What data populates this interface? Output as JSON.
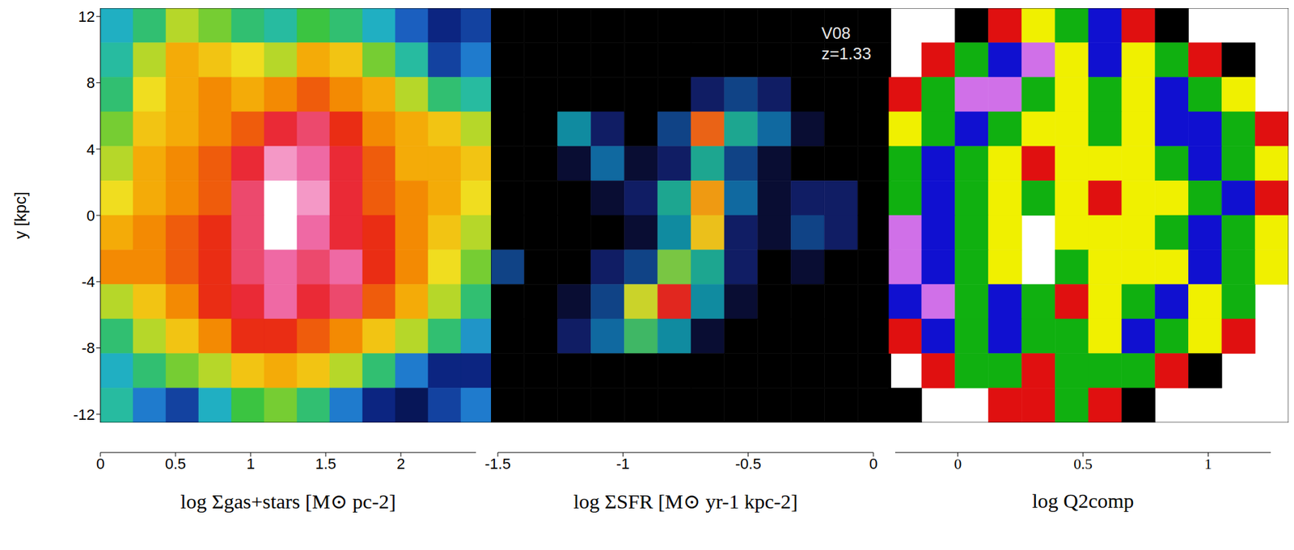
{
  "chart_data": [
    {
      "type": "heatmap",
      "xlim": [
        -12.5,
        12.5
      ],
      "ylim": [
        -12.5,
        12.5
      ],
      "xticks": [
        -12,
        -8,
        -4,
        0,
        4,
        8,
        12
      ],
      "yticks": [
        -12,
        -8,
        -4,
        0,
        4,
        8,
        12
      ],
      "tick_labels": "y",
      "y_label": "y [kpc]",
      "cells": [
        [
          0.8,
          1.0,
          1.3,
          1.2,
          1.0,
          0.9,
          1.1,
          1.0,
          0.8,
          0.5,
          0.3,
          0.4
        ],
        [
          0.9,
          1.3,
          1.6,
          1.5,
          1.4,
          1.3,
          1.6,
          1.5,
          1.2,
          0.9,
          0.4,
          0.6
        ],
        [
          1.0,
          1.4,
          1.6,
          1.7,
          1.6,
          1.7,
          1.8,
          1.7,
          1.6,
          1.3,
          1.0,
          0.9
        ],
        [
          1.2,
          1.5,
          1.6,
          1.7,
          1.8,
          2.0,
          2.1,
          1.9,
          1.7,
          1.6,
          1.5,
          1.3
        ],
        [
          1.3,
          1.6,
          1.7,
          1.8,
          2.0,
          2.3,
          2.2,
          2.0,
          1.8,
          1.6,
          1.6,
          1.5
        ],
        [
          1.4,
          1.6,
          1.7,
          1.8,
          2.1,
          2.5,
          2.3,
          2.0,
          1.8,
          1.7,
          1.6,
          1.4
        ],
        [
          1.6,
          1.7,
          1.8,
          1.9,
          2.1,
          2.5,
          2.2,
          2.0,
          1.9,
          1.7,
          1.5,
          1.3
        ],
        [
          1.7,
          1.7,
          1.8,
          1.9,
          2.1,
          2.2,
          2.1,
          2.2,
          1.9,
          1.7,
          1.4,
          1.2
        ],
        [
          1.3,
          1.5,
          1.7,
          1.9,
          2.0,
          2.2,
          2.0,
          2.1,
          1.8,
          1.6,
          1.3,
          1.0
        ],
        [
          1.0,
          1.3,
          1.5,
          1.7,
          1.9,
          1.9,
          1.8,
          1.7,
          1.5,
          1.3,
          1.0,
          0.7
        ],
        [
          0.8,
          1.0,
          1.2,
          1.3,
          1.5,
          1.6,
          1.5,
          1.3,
          1.0,
          0.6,
          0.3,
          0.3
        ],
        [
          0.9,
          0.6,
          0.4,
          0.8,
          1.1,
          1.2,
          1.0,
          0.6,
          0.3,
          0.2,
          0.4,
          0.6
        ]
      ],
      "colorbar": {
        "type": "continuous",
        "label": "log Σgas+stars [M⊙ pc-2]",
        "range": [
          0,
          2.5
        ],
        "ticks": [
          0,
          0.5,
          1,
          1.5,
          2
        ],
        "colors": [
          "#000000",
          "#0a1f7a",
          "#1f6fd0",
          "#20b8c0",
          "#3cc43c",
          "#f0e020",
          "#f59a00",
          "#e81818",
          "#f070b0",
          "#ffffff"
        ]
      }
    },
    {
      "type": "heatmap",
      "xlim": [
        -12.5,
        12.5
      ],
      "ylim": [
        -12.5,
        12.5
      ],
      "xticks": [
        -12,
        -8,
        -4,
        0,
        4,
        8,
        12
      ],
      "yticks": [
        -12,
        -8,
        -4,
        0,
        4,
        8,
        12
      ],
      "tick_labels": false,
      "annotations": [
        "V08",
        "z=1.33"
      ],
      "cells": [
        [
          -2,
          -2,
          -2,
          -2,
          -2,
          -2,
          -2,
          -2,
          -2,
          -2,
          -2,
          -2
        ],
        [
          -2,
          -2,
          -2,
          -2,
          -2,
          -2,
          -2,
          -2,
          -2,
          -2,
          -2,
          -2
        ],
        [
          -2,
          -2,
          -2,
          -2,
          -2,
          -2,
          -1.3,
          -1.2,
          -1.3,
          -2,
          -2,
          -2
        ],
        [
          -2,
          -2,
          -1.0,
          -1.3,
          -2,
          -1.2,
          -0.3,
          -0.9,
          -1.1,
          -1.4,
          -2,
          -2
        ],
        [
          -2,
          -2,
          -1.4,
          -1.1,
          -1.4,
          -1.3,
          -0.9,
          -1.2,
          -1.4,
          -2,
          -2,
          -2
        ],
        [
          -2,
          -2,
          -2,
          -1.4,
          -1.3,
          -0.9,
          -0.4,
          -1.1,
          -1.4,
          -1.3,
          -1.3,
          -2
        ],
        [
          -2,
          -2,
          -2,
          -2,
          -1.4,
          -1.0,
          -0.5,
          -1.3,
          -1.4,
          -1.2,
          -1.3,
          -2
        ],
        [
          -1.2,
          -2,
          -2,
          -1.3,
          -1.2,
          -0.7,
          -0.9,
          -1.3,
          -2,
          -1.4,
          -2,
          -2
        ],
        [
          -2,
          -2,
          -1.4,
          -1.2,
          -0.6,
          -0.2,
          -1.0,
          -1.4,
          -2,
          -2,
          -2,
          -2
        ],
        [
          -2,
          -2,
          -1.3,
          -1.1,
          -0.8,
          -1.0,
          -1.4,
          -2,
          -2,
          -2,
          -2,
          -2
        ],
        [
          -2,
          -2,
          -2,
          -2,
          -2,
          -2,
          -2,
          -2,
          -2,
          -2,
          -2,
          -2
        ],
        [
          -2,
          -2,
          -2,
          -2,
          -2,
          -2,
          -2,
          -2,
          -2,
          -2,
          -2,
          -2
        ]
      ],
      "colorbar": {
        "type": "continuous",
        "label": "log ΣSFR [M⊙ yr-1 kpc-2]",
        "range": [
          -1.5,
          0
        ],
        "ticks": [
          -1.5,
          -1,
          -0.5,
          0
        ],
        "colors": [
          "#000000",
          "#101860",
          "#1060a0",
          "#10a0a0",
          "#50c050",
          "#e8d820",
          "#f09010",
          "#e02020",
          "#ffffff"
        ]
      }
    },
    {
      "type": "heatmap",
      "xlim": [
        -12.5,
        12.5
      ],
      "ylim": [
        -12.5,
        12.5
      ],
      "xticks": [
        -12,
        -8,
        -4,
        0,
        4,
        8,
        12
      ],
      "yticks": [
        -12,
        -8,
        -4,
        0,
        4,
        8,
        12
      ],
      "tick_labels": false,
      "cells": [
        [
          null,
          null,
          1.4,
          0.9,
          0.6,
          0.35,
          0.1,
          0.9,
          1.4,
          null,
          null,
          null
        ],
        [
          null,
          0.9,
          0.35,
          0.1,
          -0.1,
          0.6,
          0.1,
          0.6,
          0.35,
          0.9,
          1.4,
          null
        ],
        [
          0.9,
          0.35,
          -0.1,
          -0.1,
          0.35,
          0.6,
          0.35,
          0.6,
          0.1,
          0.35,
          0.6,
          null
        ],
        [
          0.6,
          0.35,
          0.1,
          0.35,
          0.6,
          0.6,
          0.35,
          0.6,
          0.1,
          0.1,
          0.35,
          0.9
        ],
        [
          0.35,
          0.1,
          0.35,
          0.6,
          0.9,
          0.6,
          0.6,
          0.6,
          0.35,
          0.1,
          0.35,
          0.6
        ],
        [
          0.35,
          0.1,
          0.35,
          0.6,
          0.35,
          0.6,
          0.9,
          0.6,
          0.6,
          0.35,
          0.1,
          0.9
        ],
        [
          -0.1,
          0.1,
          0.35,
          0.6,
          null,
          0.6,
          0.6,
          0.6,
          0.35,
          0.1,
          0.35,
          0.6
        ],
        [
          -0.1,
          0.1,
          0.35,
          0.6,
          null,
          0.35,
          0.6,
          0.6,
          0.6,
          0.1,
          0.35,
          0.6
        ],
        [
          0.1,
          -0.1,
          0.35,
          0.1,
          0.35,
          0.9,
          0.6,
          0.35,
          0.1,
          0.6,
          0.35,
          null
        ],
        [
          0.9,
          0.1,
          0.35,
          0.1,
          0.35,
          0.35,
          0.6,
          0.1,
          0.35,
          0.6,
          0.9,
          null
        ],
        [
          null,
          0.9,
          0.35,
          0.35,
          0.9,
          0.35,
          0.35,
          0.35,
          0.9,
          1.4,
          null,
          null
        ],
        [
          1.4,
          null,
          null,
          0.9,
          0.9,
          0.35,
          0.9,
          1.4,
          null,
          null,
          null,
          null
        ]
      ],
      "colorbar": {
        "type": "discrete",
        "label": "log Q2comp",
        "range": [
          -0.25,
          1.25
        ],
        "ticks": [
          0,
          0.5,
          1
        ],
        "colors": [
          "#d070e8",
          "#1010d0",
          "#10b010",
          "#f0f000",
          "#e01010",
          "#000000"
        ]
      }
    }
  ]
}
